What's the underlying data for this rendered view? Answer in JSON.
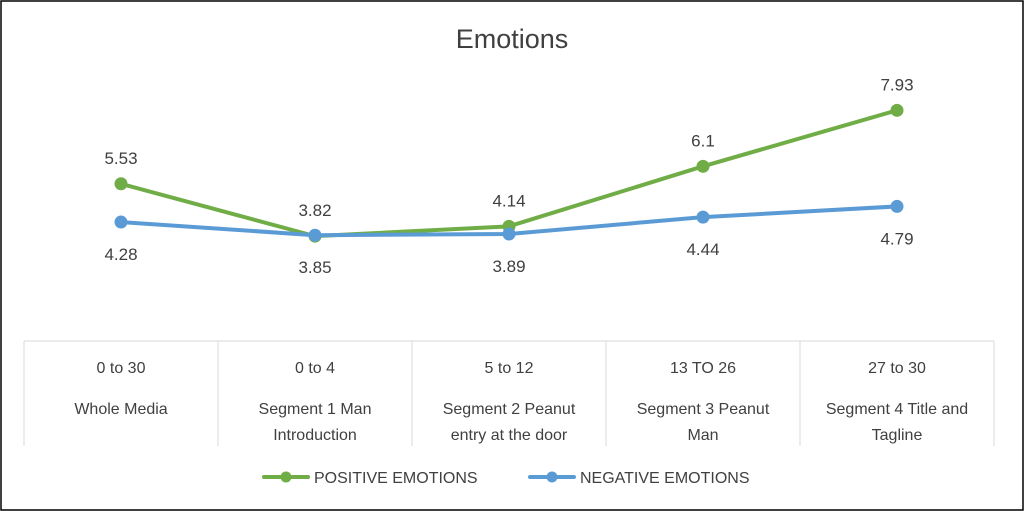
{
  "chart_data": {
    "type": "line",
    "title": "Emotions",
    "categories": [
      [
        "0 to 30",
        "Whole Media"
      ],
      [
        "0 to 4",
        "Segment 1 Man",
        "Introduction"
      ],
      [
        "5 to 12",
        "Segment 2  Peanut",
        "entry at the door"
      ],
      [
        "13 TO 26",
        "Segment 3 Peanut",
        "Man"
      ],
      [
        "27 to 30",
        "Segment 4 Title and",
        "Tagline"
      ]
    ],
    "series": [
      {
        "name": "POSITIVE EMOTIONS",
        "color": "#70ad47",
        "values": [
          5.53,
          3.82,
          4.14,
          6.1,
          7.93
        ],
        "labels": [
          "5.53",
          "3.82",
          "4.14",
          "6.1",
          "7.93"
        ],
        "label_position": "above"
      },
      {
        "name": "NEGATIVE EMOTIONS",
        "color": "#5b9bd5",
        "values": [
          4.28,
          3.85,
          3.89,
          4.44,
          4.79
        ],
        "labels": [
          "4.28",
          "3.85",
          "3.89",
          "4.44",
          "4.79"
        ],
        "label_position": "below"
      }
    ],
    "legend": "bottom",
    "grid": false,
    "colors": {
      "border": "#000000",
      "table_lines": "#d9d9d9",
      "text": "#404040",
      "title": "#595959"
    }
  }
}
